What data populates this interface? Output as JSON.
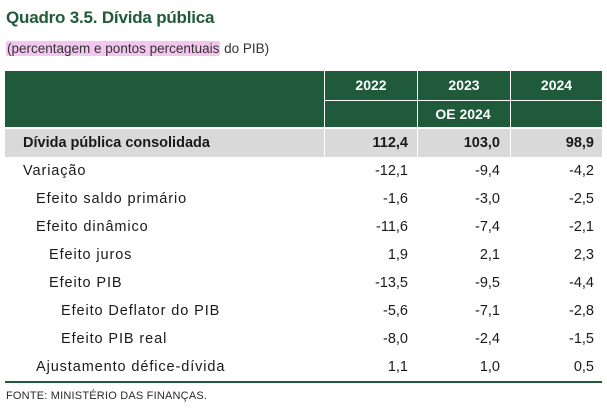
{
  "title": "Quadro 3.5. Dívida pública",
  "subtitle_highlight": "(percentagem e pontos percentuais",
  "subtitle_rest": " do PIB)",
  "header": {
    "years": [
      "2022",
      "2023",
      "2024"
    ],
    "oe": "OE 2024"
  },
  "rows": [
    {
      "label": "Dívida pública consolidada",
      "v2022": "112,4",
      "v2023": "103,0",
      "v2024": "98,9"
    },
    {
      "label": "Variação",
      "v2022": "-12,1",
      "v2023": "-9,4",
      "v2024": "-4,2"
    },
    {
      "label": "Efeito saldo primário",
      "v2022": "-1,6",
      "v2023": "-3,0",
      "v2024": "-2,5"
    },
    {
      "label": "Efeito dinâmico",
      "v2022": "-11,6",
      "v2023": "-7,4",
      "v2024": "-2,1"
    },
    {
      "label": "Efeito juros",
      "v2022": "1,9",
      "v2023": "2,1",
      "v2024": "2,3"
    },
    {
      "label": "Efeito PIB",
      "v2022": "-13,5",
      "v2023": "-9,5",
      "v2024": "-4,4"
    },
    {
      "label": "Efeito Deflator do PIB",
      "v2022": "-5,6",
      "v2023": "-7,1",
      "v2024": "-2,8"
    },
    {
      "label": "Efeito PIB real",
      "v2022": "-8,0",
      "v2023": "-2,4",
      "v2024": "-1,5"
    },
    {
      "label": "Ajustamento défice-dívida",
      "v2022": "1,1",
      "v2023": "1,0",
      "v2024": "0,5"
    }
  ],
  "source": "FONTE: MINISTÉRIO DAS FINANÇAS.",
  "colors": {
    "header_green": "#1f5a3a",
    "highlight_pink": "#f3c6ee",
    "row_gray": "#d9d9d9"
  }
}
